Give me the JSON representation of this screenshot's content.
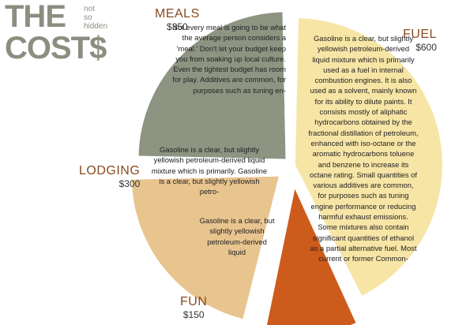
{
  "title": {
    "line1": "THE",
    "line2": "COST$",
    "small": [
      "not",
      "so",
      "hidden"
    ]
  },
  "colors": {
    "meals": "#8e9482",
    "fuel": "#f7e5a6",
    "lodging": "#e8c48f",
    "fun": "#cd5b1c",
    "label": "#8a4a1f",
    "title": "#8b8f80"
  },
  "chart_data": {
    "type": "pie",
    "categories": [
      "MEALS",
      "FUEL",
      "LODGING",
      "FUN"
    ],
    "values": [
      350,
      600,
      300,
      150
    ],
    "amount_labels": [
      "$350",
      "$600",
      "$300",
      "$150"
    ],
    "title": "THE not so hidden COST$"
  },
  "labels": {
    "meals": {
      "name": "MEALS",
      "amount": "$350"
    },
    "fuel": {
      "name": "FUEL",
      "amount": "$600"
    },
    "lodging": {
      "name": "LODGING",
      "amount": "$300"
    },
    "fun": {
      "name": "FUN",
      "amount": "$150"
    }
  },
  "texts": {
    "meals": "Not every meal is going to be what the average person considers a 'meal.' Don't let your budget keep you from soaking up local culture. Even the tightest budget has room for play. Additives are common, for purposes such as tuning en-",
    "fuel": "Gasoline is a clear, but slightly yellowish petroleum-derived liquid mixture which is primarily used as a fuel in internal combustion engines. It is also used as a solvent, mainly known for its ability to dilute paints. It consists mostly of aliphatic hydrocarbons obtained by the fractional distillation of petroleum, enhanced with iso-octane or the aromatic hydrocarbons toluene and benzene to increase its octane rating. Small quantities of various additives are common, for purposes such as tuning engine performance or reducing harmful exhaust emissions. Some mixtures also contain significant quantities of ethanol as a partial alternative fuel. Most current or former Common-",
    "lodging": "Gasoline is a clear, but slightly yellowish petroleum-derived liquid mixture which is primarily. Gasoline is a clear, but slightly yellowish petro-",
    "fun": "Gasoline is a clear, but slightly yellowish petroleum-derived liquid"
  }
}
